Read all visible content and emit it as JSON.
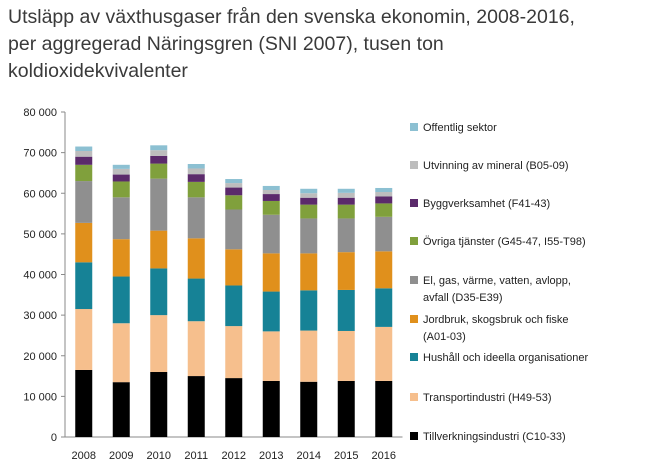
{
  "chart_data": {
    "type": "stacked-bar",
    "title_lines": [
      "Utsläpp av växthusgaser från den svenska ekonomin, 2008-2016,",
      "per aggregerad Näringsgren (SNI 2007), tusen ton",
      "koldioxidekvivalenter"
    ],
    "categories": [
      "2008",
      "2009",
      "2010",
      "2011",
      "2012",
      "2013",
      "2014",
      "2015",
      "2016"
    ],
    "ylim": [
      0,
      80000
    ],
    "yticks": [
      0,
      10000,
      20000,
      30000,
      40000,
      50000,
      60000,
      70000,
      80000
    ],
    "ytick_labels": [
      "0",
      "10 000",
      "20 000",
      "30 000",
      "40 000",
      "50 000",
      "60 000",
      "70 000",
      "80 000"
    ],
    "grid": false,
    "legend_position": "right",
    "series": [
      {
        "name": "Tillverkningsindustri (C10-33)",
        "color": "#000000",
        "values": [
          16500,
          13500,
          16000,
          15000,
          14500,
          13800,
          13600,
          13800,
          13800
        ]
      },
      {
        "name": "Transportindustri (H49-53)",
        "color": "#f6bf8d",
        "values": [
          15000,
          14500,
          14000,
          13500,
          12800,
          12200,
          12600,
          12300,
          13300
        ]
      },
      {
        "name": "Hushåll och ideella organisationer",
        "color": "#168296",
        "values": [
          11500,
          11500,
          11500,
          10500,
          10000,
          9800,
          9900,
          10100,
          9500
        ]
      },
      {
        "name": "Jordbruk, skogsbruk och fiske (A01-03)",
        "color": "#e0901c",
        "values": [
          9700,
          9200,
          9300,
          9900,
          8900,
          9400,
          9100,
          9300,
          9100
        ]
      },
      {
        "name": "El, gas, värme, vatten, avlopp, avfall (D35-E39)",
        "color": "#8f8f8f",
        "values": [
          10300,
          10300,
          12800,
          10100,
          9800,
          9500,
          8600,
          8300,
          8500
        ]
      },
      {
        "name": "Övriga tjänster (G45-47, I55-T98)",
        "color": "#80a03c",
        "values": [
          4000,
          3900,
          3700,
          3800,
          3500,
          3400,
          3400,
          3400,
          3300
        ]
      },
      {
        "name": "Byggverksamhet (F41-43)",
        "color": "#5b2a6b",
        "values": [
          2000,
          1700,
          1900,
          1900,
          1900,
          1700,
          1700,
          1700,
          1700
        ]
      },
      {
        "name": "Utvinning av mineral (B05-09)",
        "color": "#bdbdbd",
        "values": [
          1400,
          1400,
          1400,
          1400,
          1100,
          1000,
          1100,
          1200,
          1100
        ]
      },
      {
        "name": "Offentlig sektor",
        "color": "#8cc0d2",
        "values": [
          1100,
          1000,
          1200,
          1100,
          1000,
          1000,
          1100,
          1000,
          1000
        ]
      }
    ],
    "legend_order": [
      8,
      7,
      6,
      5,
      4,
      3,
      2,
      1,
      0
    ],
    "legend_labels": [
      [
        "Offentlig sektor"
      ],
      [
        "Utvinning av mineral (B05-09)"
      ],
      [
        "Byggverksamhet (F41-43)"
      ],
      [
        "Övriga tjänster (G45-47, I55-T98)"
      ],
      [
        "El, gas, värme, vatten, avlopp,",
        "avfall (D35-E39)"
      ],
      [
        "Jordbruk, skogsbruk och fiske",
        "(A01-03)"
      ],
      [
        "Hushåll och ideella organisationer"
      ],
      [
        "Transportindustri (H49-53)"
      ],
      [
        "Tillverkningsindustri (C10-33)"
      ]
    ]
  }
}
